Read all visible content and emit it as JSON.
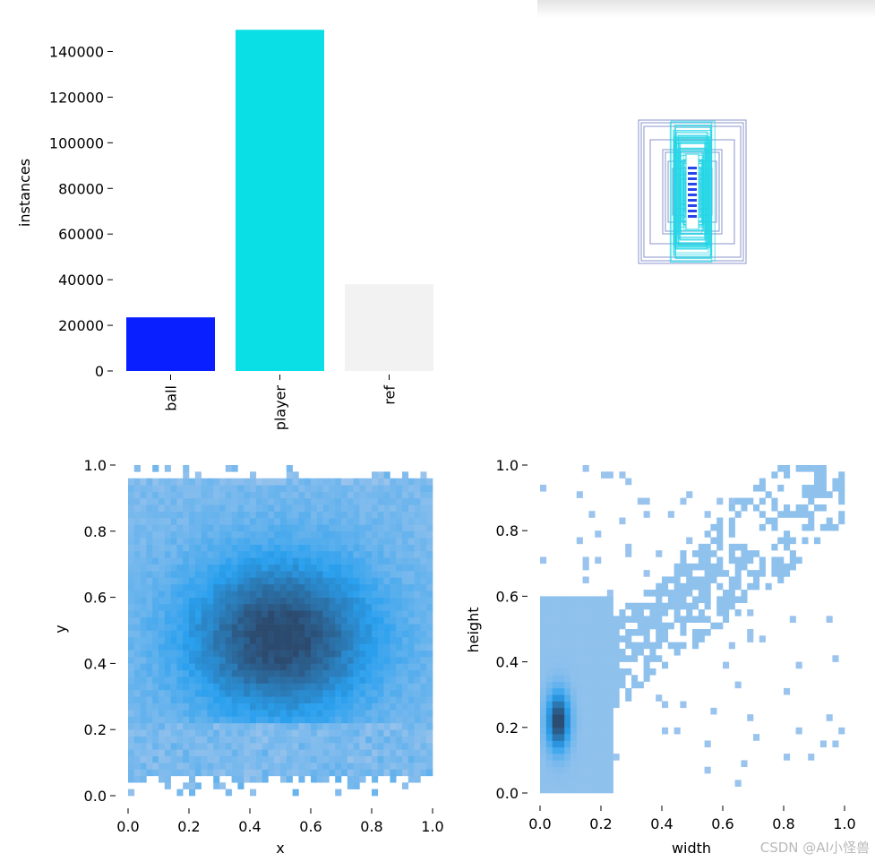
{
  "chart_data": [
    {
      "type": "bar",
      "title": "",
      "xlabel": "",
      "ylabel": "instances",
      "categories": [
        "ball",
        "player",
        "ref"
      ],
      "values": [
        23500,
        149500,
        38000
      ],
      "colors": [
        "#0a1fff",
        "#0adfe6",
        "#f2f2f2"
      ],
      "ylim": [
        0,
        150000
      ],
      "yticks": [
        "0",
        "20000",
        "40000",
        "60000",
        "80000",
        "100000",
        "120000",
        "140000"
      ]
    },
    {
      "type": "scatter",
      "title": "",
      "description_type": "bounding-box overlay",
      "series": [
        {
          "name": "ball",
          "color": "#1130e8"
        },
        {
          "name": "player",
          "color": "#23d6e6"
        },
        {
          "name": "ref",
          "color": "#7382c2"
        }
      ]
    },
    {
      "type": "heatmap",
      "xlabel": "x",
      "ylabel": "y",
      "xlim": [
        0,
        1
      ],
      "ylim": [
        0,
        1
      ],
      "xticks": [
        "0.0",
        "0.2",
        "0.4",
        "0.6",
        "0.8",
        "1.0"
      ],
      "yticks": [
        "0.0",
        "0.2",
        "0.4",
        "0.6",
        "0.8",
        "1.0"
      ],
      "peak": {
        "x": 0.5,
        "y": 0.48
      },
      "colors": {
        "low": "#a9c8ec",
        "mid": "#2aa0ee",
        "high": "#2c4a6e"
      }
    },
    {
      "type": "heatmap",
      "xlabel": "width",
      "ylabel": "height",
      "xlim": [
        0,
        1
      ],
      "ylim": [
        0,
        1
      ],
      "xticks": [
        "0.0",
        "0.2",
        "0.4",
        "0.6",
        "0.8",
        "1.0"
      ],
      "yticks": [
        "0.0",
        "0.2",
        "0.4",
        "0.6",
        "0.8",
        "1.0"
      ],
      "peak": {
        "x": 0.06,
        "y": 0.22
      },
      "colors": {
        "low": "#afcbed",
        "mid": "#2aa0ee",
        "high": "#2c4a6e"
      }
    }
  ],
  "watermark": "CSDN @AI小怪兽"
}
